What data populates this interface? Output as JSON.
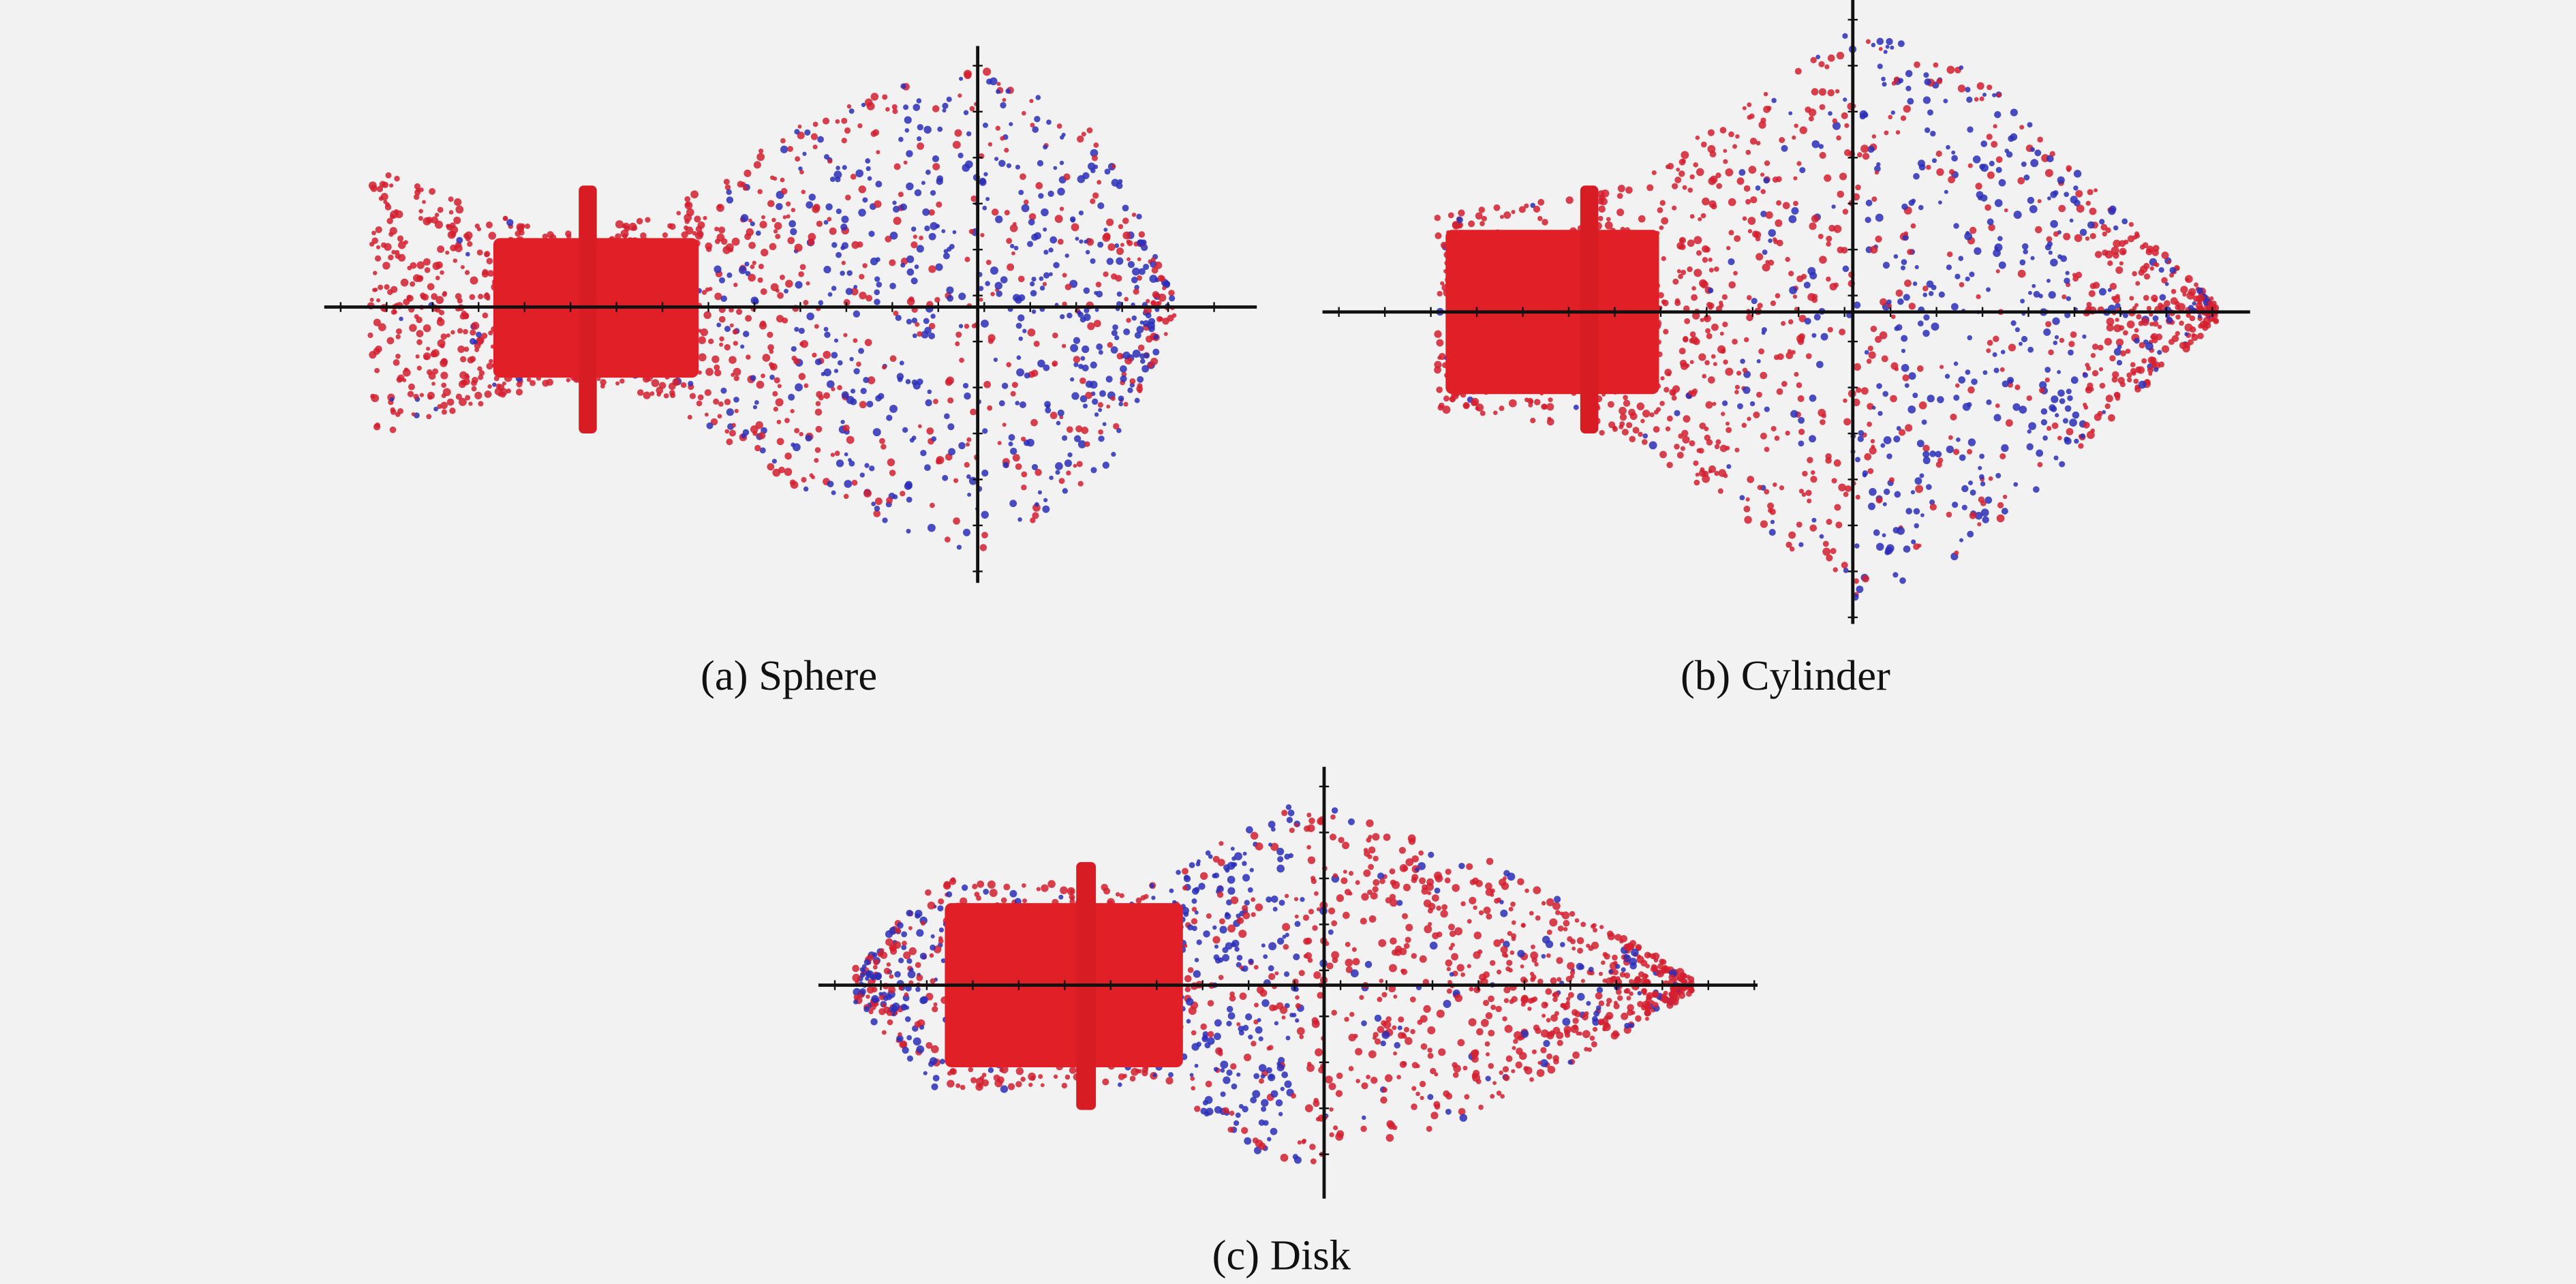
{
  "figure": {
    "panels": [
      {
        "caption": "(a) Sphere"
      },
      {
        "caption": "(b) Cylinder"
      },
      {
        "caption": "(c) Disk"
      }
    ]
  }
}
